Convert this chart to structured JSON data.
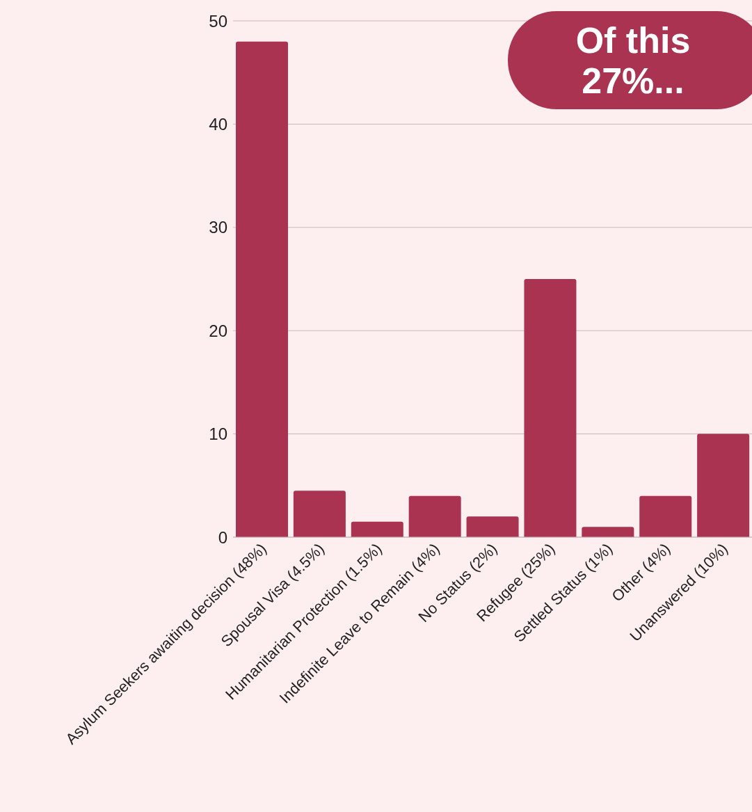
{
  "chart_data": {
    "type": "bar",
    "categories": [
      "Asylum Seekers awaiting decision (48%)",
      "Spousal Visa (4.5%)",
      "Humanitarian Protection (1.5%)",
      "Indefinite Leave to Remain (4%)",
      "No Status (2%)",
      "Refugee (25%)",
      "Settled Status (1%)",
      "Other (4%)",
      "Unanswered (10%)"
    ],
    "values": [
      48,
      4.5,
      1.5,
      4,
      2,
      25,
      1,
      4,
      10
    ],
    "color": "#ab3352",
    "ylim": [
      0,
      50
    ],
    "yticks": [
      0,
      10,
      20,
      30,
      40,
      50
    ],
    "grid": "y",
    "annotations": [
      "Of this 27%..."
    ]
  }
}
